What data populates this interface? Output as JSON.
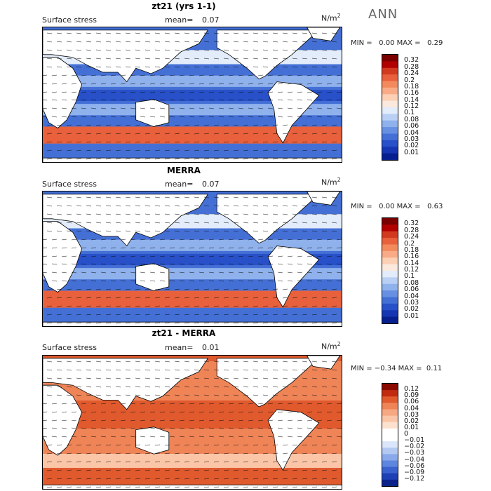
{
  "season": "ANN",
  "panels": [
    {
      "title": "zt21 (yrs 1-1)",
      "label": "Surface stress",
      "mean_label": "mean=",
      "mean": "0.07",
      "unit": "N/m",
      "unit_sup": "2",
      "min_label": "MIN =",
      "min": "0.00",
      "max_label": "MAX =",
      "max": "0.29",
      "palette": "sequential",
      "colorbar_levels": [
        "0.32",
        "0.28",
        "0.24",
        "0.2",
        "0.18",
        "0.16",
        "0.14",
        "0.12",
        "0.1",
        "0.08",
        "0.06",
        "0.04",
        "0.03",
        "0.02",
        "0.01"
      ]
    },
    {
      "title": "MERRA",
      "label": "Surface stress",
      "mean_label": "mean=",
      "mean": "0.07",
      "unit": "N/m",
      "unit_sup": "2",
      "min_label": "MIN =",
      "min": "0.00",
      "max_label": "MAX =",
      "max": "0.63",
      "palette": "sequential",
      "colorbar_levels": [
        "0.32",
        "0.28",
        "0.24",
        "0.2",
        "0.18",
        "0.16",
        "0.14",
        "0.12",
        "0.1",
        "0.08",
        "0.06",
        "0.04",
        "0.03",
        "0.02",
        "0.01"
      ]
    },
    {
      "title": "zt21 - MERRA",
      "label": "Surface stress",
      "mean_label": "mean=",
      "mean": "0.01",
      "unit": "N/m",
      "unit_sup": "2",
      "min_label": "MIN =",
      "min": "−0.34",
      "max_label": "MAX =",
      "max": "0.11",
      "palette": "diverging",
      "colorbar_levels": [
        "0.12",
        "0.09",
        "0.06",
        "0.04",
        "0.03",
        "0.02",
        "0.01",
        "0",
        "−0.01",
        "−0.02",
        "−0.03",
        "−0.04",
        "−0.06",
        "−0.09",
        "−0.12"
      ]
    }
  ],
  "colors": {
    "sequential": [
      "#7a0000",
      "#b00000",
      "#d23a1f",
      "#e8613c",
      "#f38a5e",
      "#f8ab86",
      "#fcd0b4",
      "#fbe9dd",
      "#e3ecfa",
      "#b9d0f4",
      "#8fb1ec",
      "#6890e2",
      "#4470d6",
      "#2850c8",
      "#1535b2",
      "#071f8e"
    ],
    "diverging": [
      "#8a0a00",
      "#c22a10",
      "#e05a2e",
      "#ef8457",
      "#f6a882",
      "#fbc6a8",
      "#fde1cf",
      "#ffffff",
      "#ffffff",
      "#dbe6fa",
      "#b3c9f2",
      "#89a9ea",
      "#5f86de",
      "#3a62ce",
      "#1e40b4",
      "#0c238c"
    ],
    "land": "#ffffff",
    "frame": "#000000"
  },
  "chart_data": [
    {
      "type": "heatmap",
      "title": "zt21 (yrs 1-1)",
      "field": "Surface stress",
      "mean": 0.07,
      "units": "N/m2",
      "min": 0.0,
      "max": 0.29,
      "levels": [
        0.01,
        0.02,
        0.03,
        0.04,
        0.06,
        0.08,
        0.1,
        0.12,
        0.14,
        0.16,
        0.18,
        0.2,
        0.24,
        0.28,
        0.32
      ]
    },
    {
      "type": "heatmap",
      "title": "MERRA",
      "field": "Surface stress",
      "mean": 0.07,
      "units": "N/m2",
      "min": 0.0,
      "max": 0.63,
      "levels": [
        0.01,
        0.02,
        0.03,
        0.04,
        0.06,
        0.08,
        0.1,
        0.12,
        0.14,
        0.16,
        0.18,
        0.2,
        0.24,
        0.28,
        0.32
      ]
    },
    {
      "type": "heatmap",
      "title": "zt21 - MERRA",
      "field": "Surface stress",
      "mean": 0.01,
      "units": "N/m2",
      "min": -0.34,
      "max": 0.11,
      "levels": [
        -0.12,
        -0.09,
        -0.06,
        -0.04,
        -0.03,
        -0.02,
        -0.01,
        0,
        0.01,
        0.02,
        0.03,
        0.04,
        0.06,
        0.09,
        0.12
      ]
    }
  ]
}
